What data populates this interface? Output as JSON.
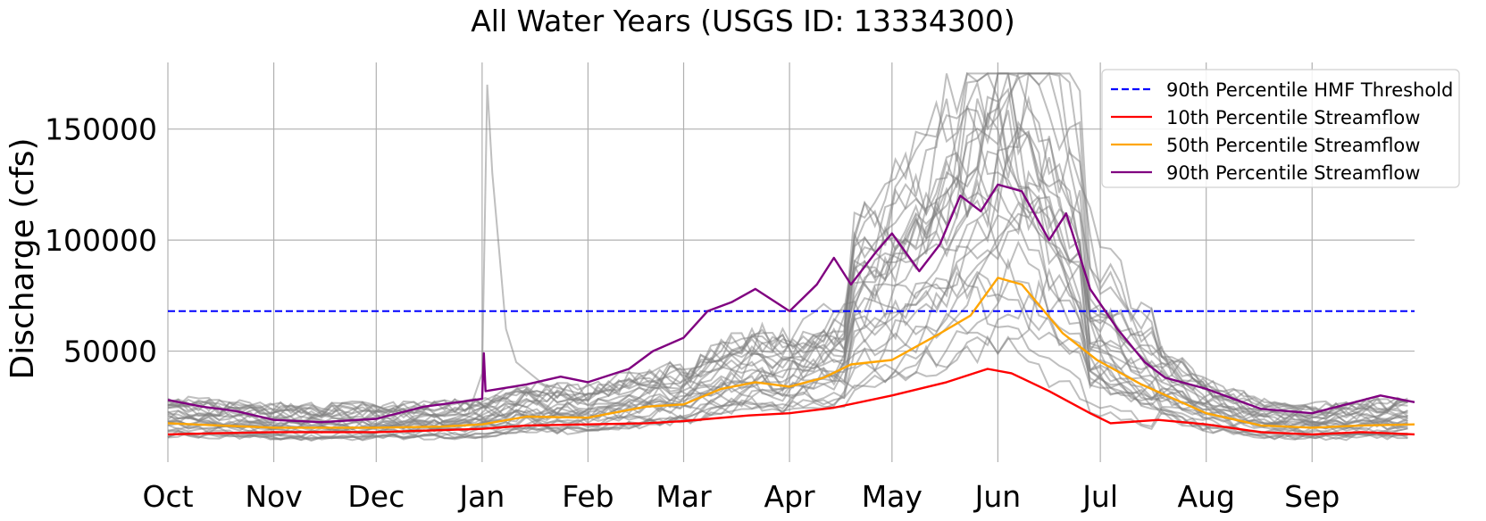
{
  "chart_data": {
    "type": "line",
    "title": "All Water Years (USGS ID: 13334300)",
    "xlabel": "",
    "ylabel": "Discharge (cfs)",
    "x_tick_labels": [
      "Oct",
      "Nov",
      "Dec",
      "Jan",
      "Feb",
      "Mar",
      "Apr",
      "May",
      "Jun",
      "Jul",
      "Aug",
      "Sep"
    ],
    "x_tick_days": [
      0,
      31,
      61,
      92,
      123,
      151,
      182,
      212,
      243,
      273,
      304,
      335
    ],
    "x_range_days": [
      0,
      365
    ],
    "y_ticks": [
      50000,
      100000,
      150000
    ],
    "ylim": [
      0,
      180000
    ],
    "grid": true,
    "legend_placement": "top-right",
    "hmf_threshold": 68000,
    "legend": [
      {
        "label": "90th Percentile HMF Threshold",
        "color": "#0000ff",
        "dash": true
      },
      {
        "label": "10th Percentile Streamflow",
        "color": "#ff0000",
        "dash": false
      },
      {
        "label": "50th Percentile Streamflow",
        "color": "#ffa500",
        "dash": false
      },
      {
        "label": "90th Percentile Streamflow",
        "color": "#800080",
        "dash": false
      }
    ],
    "series": [
      {
        "name": "10th Percentile Streamflow",
        "color": "#ff0000",
        "points": [
          [
            0,
            12500
          ],
          [
            15,
            13000
          ],
          [
            31,
            13500
          ],
          [
            61,
            13500
          ],
          [
            92,
            15000
          ],
          [
            105,
            16500
          ],
          [
            123,
            17000
          ],
          [
            140,
            17500
          ],
          [
            151,
            18500
          ],
          [
            170,
            21000
          ],
          [
            182,
            22000
          ],
          [
            195,
            24500
          ],
          [
            212,
            30000
          ],
          [
            228,
            36000
          ],
          [
            240,
            42000
          ],
          [
            247,
            40000
          ],
          [
            258,
            32000
          ],
          [
            270,
            22000
          ],
          [
            276,
            17500
          ],
          [
            290,
            19000
          ],
          [
            304,
            17000
          ],
          [
            320,
            13500
          ],
          [
            335,
            12500
          ],
          [
            350,
            13500
          ],
          [
            365,
            12500
          ]
        ]
      },
      {
        "name": "50th Percentile Streamflow",
        "color": "#ffa500",
        "points": [
          [
            0,
            17500
          ],
          [
            15,
            16500
          ],
          [
            31,
            15500
          ],
          [
            61,
            15500
          ],
          [
            80,
            16000
          ],
          [
            92,
            17000
          ],
          [
            105,
            20500
          ],
          [
            123,
            20000
          ],
          [
            140,
            25000
          ],
          [
            151,
            26000
          ],
          [
            162,
            33000
          ],
          [
            172,
            36000
          ],
          [
            182,
            34000
          ],
          [
            192,
            38000
          ],
          [
            200,
            44000
          ],
          [
            212,
            46000
          ],
          [
            225,
            57000
          ],
          [
            235,
            66000
          ],
          [
            243,
            83000
          ],
          [
            250,
            80000
          ],
          [
            262,
            58000
          ],
          [
            272,
            46000
          ],
          [
            285,
            35000
          ],
          [
            304,
            22000
          ],
          [
            320,
            16500
          ],
          [
            335,
            15500
          ],
          [
            350,
            16500
          ],
          [
            365,
            17000
          ]
        ]
      },
      {
        "name": "90th Percentile Streamflow",
        "color": "#800080",
        "points": [
          [
            0,
            28000
          ],
          [
            10,
            25000
          ],
          [
            20,
            23000
          ],
          [
            31,
            19000
          ],
          [
            45,
            18000
          ],
          [
            61,
            19500
          ],
          [
            75,
            25000
          ],
          [
            85,
            27000
          ],
          [
            92,
            28500
          ],
          [
            92.5,
            49000
          ],
          [
            93,
            32000
          ],
          [
            105,
            35000
          ],
          [
            115,
            38500
          ],
          [
            123,
            36000
          ],
          [
            135,
            42000
          ],
          [
            142,
            50000
          ],
          [
            151,
            56000
          ],
          [
            158,
            68000
          ],
          [
            165,
            72000
          ],
          [
            172,
            78000
          ],
          [
            182,
            68000
          ],
          [
            190,
            80000
          ],
          [
            195,
            92000
          ],
          [
            200,
            80000
          ],
          [
            207,
            94000
          ],
          [
            212,
            103000
          ],
          [
            220,
            86000
          ],
          [
            226,
            98000
          ],
          [
            232,
            120000
          ],
          [
            238,
            113000
          ],
          [
            243,
            125000
          ],
          [
            250,
            122000
          ],
          [
            258,
            100000
          ],
          [
            263,
            112000
          ],
          [
            270,
            78000
          ],
          [
            278,
            60000
          ],
          [
            286,
            45000
          ],
          [
            292,
            38000
          ],
          [
            304,
            33000
          ],
          [
            320,
            24000
          ],
          [
            335,
            22000
          ],
          [
            345,
            26000
          ],
          [
            355,
            30000
          ],
          [
            365,
            27000
          ]
        ]
      }
    ]
  }
}
